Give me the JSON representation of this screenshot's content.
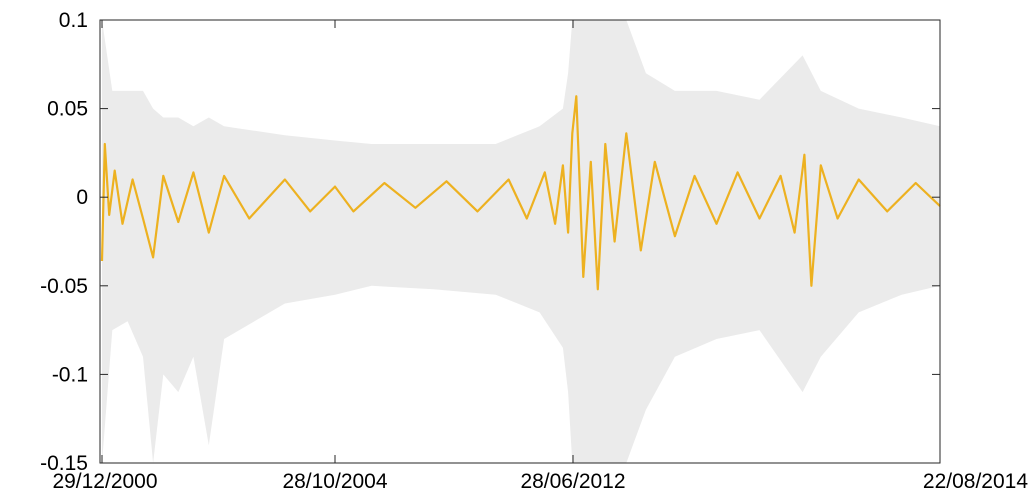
{
  "chart_data": {
    "type": "line",
    "title": "",
    "xlabel": "",
    "ylabel": "",
    "ylim": [
      -0.15,
      0.1
    ],
    "yticks": [
      {
        "value": 0.1,
        "label": "0.1"
      },
      {
        "value": 0.05,
        "label": "0.05"
      },
      {
        "value": 0,
        "label": "0"
      },
      {
        "value": -0.05,
        "label": "-0.05"
      },
      {
        "value": -0.1,
        "label": "-0.1"
      },
      {
        "value": -0.15,
        "label": "-0.15"
      }
    ],
    "xticks": [
      {
        "date": "2000-12-29",
        "label": "29/12/2000"
      },
      {
        "date": "2004-10-28",
        "label": "28/10/2004"
      },
      {
        "date": "2012-06-28",
        "label": "28/06/2012"
      },
      {
        "date": "2014-08-22",
        "label": "22/08/2014"
      }
    ],
    "x_axis": "irregular date axis; tick spacing is not proportional to calendar time",
    "series": [
      {
        "role": "main-series",
        "color": "#EDB120",
        "points": [
          {
            "x": "2000-12-29",
            "y": -0.036
          },
          {
            "x": "2001-01-15",
            "y": 0.03
          },
          {
            "x": "2001-02-10",
            "y": -0.01
          },
          {
            "x": "2001-03-15",
            "y": 0.015
          },
          {
            "x": "2001-05-01",
            "y": -0.015
          },
          {
            "x": "2001-07-01",
            "y": 0.01
          },
          {
            "x": "2001-09-01",
            "y": -0.012
          },
          {
            "x": "2001-11-01",
            "y": -0.034
          },
          {
            "x": "2002-01-01",
            "y": 0.012
          },
          {
            "x": "2002-04-01",
            "y": -0.014
          },
          {
            "x": "2002-07-01",
            "y": 0.014
          },
          {
            "x": "2002-10-01",
            "y": -0.02
          },
          {
            "x": "2003-01-01",
            "y": 0.012
          },
          {
            "x": "2003-06-01",
            "y": -0.012
          },
          {
            "x": "2004-01-01",
            "y": 0.01
          },
          {
            "x": "2004-06-01",
            "y": -0.008
          },
          {
            "x": "2004-10-28",
            "y": 0.006
          },
          {
            "x": "2005-06-01",
            "y": -0.008
          },
          {
            "x": "2006-06-01",
            "y": 0.008
          },
          {
            "x": "2007-06-01",
            "y": -0.006
          },
          {
            "x": "2008-06-01",
            "y": 0.009
          },
          {
            "x": "2009-06-01",
            "y": -0.008
          },
          {
            "x": "2010-06-01",
            "y": 0.01
          },
          {
            "x": "2011-01-01",
            "y": -0.012
          },
          {
            "x": "2011-08-01",
            "y": 0.014
          },
          {
            "x": "2011-12-01",
            "y": -0.015
          },
          {
            "x": "2012-03-01",
            "y": 0.018
          },
          {
            "x": "2012-05-01",
            "y": -0.02
          },
          {
            "x": "2012-06-20",
            "y": 0.036
          },
          {
            "x": "2012-07-05",
            "y": 0.057
          },
          {
            "x": "2012-07-20",
            "y": -0.045
          },
          {
            "x": "2012-08-05",
            "y": 0.02
          },
          {
            "x": "2012-08-20",
            "y": -0.052
          },
          {
            "x": "2012-09-05",
            "y": 0.03
          },
          {
            "x": "2012-09-25",
            "y": -0.025
          },
          {
            "x": "2012-10-20",
            "y": 0.036
          },
          {
            "x": "2012-11-20",
            "y": -0.03
          },
          {
            "x": "2012-12-20",
            "y": 0.02
          },
          {
            "x": "2013-02-01",
            "y": -0.022
          },
          {
            "x": "2013-03-15",
            "y": 0.012
          },
          {
            "x": "2013-05-01",
            "y": -0.015
          },
          {
            "x": "2013-06-15",
            "y": 0.014
          },
          {
            "x": "2013-08-01",
            "y": -0.012
          },
          {
            "x": "2013-09-15",
            "y": 0.012
          },
          {
            "x": "2013-10-15",
            "y": -0.02
          },
          {
            "x": "2013-11-05",
            "y": 0.024
          },
          {
            "x": "2013-11-20",
            "y": -0.05
          },
          {
            "x": "2013-12-10",
            "y": 0.018
          },
          {
            "x": "2014-01-15",
            "y": -0.012
          },
          {
            "x": "2014-03-01",
            "y": 0.01
          },
          {
            "x": "2014-05-01",
            "y": -0.008
          },
          {
            "x": "2014-07-01",
            "y": 0.008
          },
          {
            "x": "2014-08-22",
            "y": -0.005
          }
        ]
      },
      {
        "role": "shaded-band",
        "color": "#EBEBEB",
        "points": [
          {
            "x": "2000-12-29",
            "lower": -0.15,
            "upper": 0.1
          },
          {
            "x": "2001-03-01",
            "lower": -0.075,
            "upper": 0.06
          },
          {
            "x": "2001-06-01",
            "lower": -0.07,
            "upper": 0.06
          },
          {
            "x": "2001-09-01",
            "lower": -0.09,
            "upper": 0.06
          },
          {
            "x": "2001-11-01",
            "lower": -0.15,
            "upper": 0.05
          },
          {
            "x": "2002-01-01",
            "lower": -0.1,
            "upper": 0.045
          },
          {
            "x": "2002-04-01",
            "lower": -0.11,
            "upper": 0.045
          },
          {
            "x": "2002-07-01",
            "lower": -0.09,
            "upper": 0.04
          },
          {
            "x": "2002-10-01",
            "lower": -0.14,
            "upper": 0.045
          },
          {
            "x": "2003-01-01",
            "lower": -0.08,
            "upper": 0.04
          },
          {
            "x": "2004-01-01",
            "lower": -0.06,
            "upper": 0.035
          },
          {
            "x": "2004-10-28",
            "lower": -0.055,
            "upper": 0.032
          },
          {
            "x": "2006-01-01",
            "lower": -0.05,
            "upper": 0.03
          },
          {
            "x": "2008-01-01",
            "lower": -0.052,
            "upper": 0.03
          },
          {
            "x": "2010-01-01",
            "lower": -0.055,
            "upper": 0.03
          },
          {
            "x": "2011-06-01",
            "lower": -0.065,
            "upper": 0.04
          },
          {
            "x": "2012-03-01",
            "lower": -0.085,
            "upper": 0.05
          },
          {
            "x": "2012-05-01",
            "lower": -0.11,
            "upper": 0.07
          },
          {
            "x": "2012-06-20",
            "lower": -0.15,
            "upper": 0.1
          },
          {
            "x": "2012-07-20",
            "lower": -0.15,
            "upper": 0.1
          },
          {
            "x": "2012-09-01",
            "lower": -0.15,
            "upper": 0.1
          },
          {
            "x": "2012-10-20",
            "lower": -0.15,
            "upper": 0.1
          },
          {
            "x": "2012-12-01",
            "lower": -0.12,
            "upper": 0.07
          },
          {
            "x": "2013-02-01",
            "lower": -0.09,
            "upper": 0.06
          },
          {
            "x": "2013-05-01",
            "lower": -0.08,
            "upper": 0.06
          },
          {
            "x": "2013-08-01",
            "lower": -0.075,
            "upper": 0.055
          },
          {
            "x": "2013-11-01",
            "lower": -0.11,
            "upper": 0.08
          },
          {
            "x": "2013-12-10",
            "lower": -0.09,
            "upper": 0.06
          },
          {
            "x": "2014-03-01",
            "lower": -0.065,
            "upper": 0.05
          },
          {
            "x": "2014-06-01",
            "lower": -0.055,
            "upper": 0.045
          },
          {
            "x": "2014-08-22",
            "lower": -0.05,
            "upper": 0.04
          }
        ]
      }
    ],
    "grid": false
  }
}
